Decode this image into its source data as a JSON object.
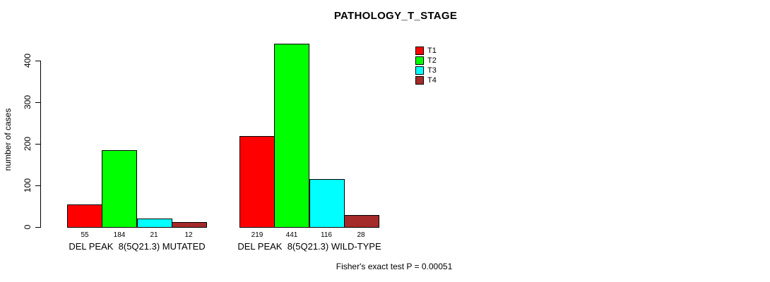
{
  "chart_data": {
    "type": "bar",
    "title": "PATHOLOGY_T_STAGE",
    "ylabel": "number of cases",
    "xlabel": "",
    "ylim": [
      0,
      450
    ],
    "yticks": [
      0,
      100,
      200,
      300,
      400
    ],
    "grid": false,
    "legend_position": "top-right",
    "series_names": [
      "T1",
      "T2",
      "T3",
      "T4"
    ],
    "colors": [
      "#FF0000",
      "#00FF00",
      "#00FFFF",
      "#A52A2A"
    ],
    "bar_border_color": "#000000",
    "groups": [
      {
        "label": "DEL PEAK  8(5Q21.3) MUTATED",
        "values": [
          55,
          184,
          21,
          12
        ],
        "value_labels": [
          "55",
          "184",
          "21",
          "12"
        ]
      },
      {
        "label": "DEL PEAK  8(5Q21.3) WILD-TYPE",
        "values": [
          219,
          441,
          116,
          28
        ],
        "value_labels": [
          "219",
          "441",
          "116",
          "28"
        ]
      }
    ],
    "annotation": "Fisher's exact test P = 0.00051"
  }
}
